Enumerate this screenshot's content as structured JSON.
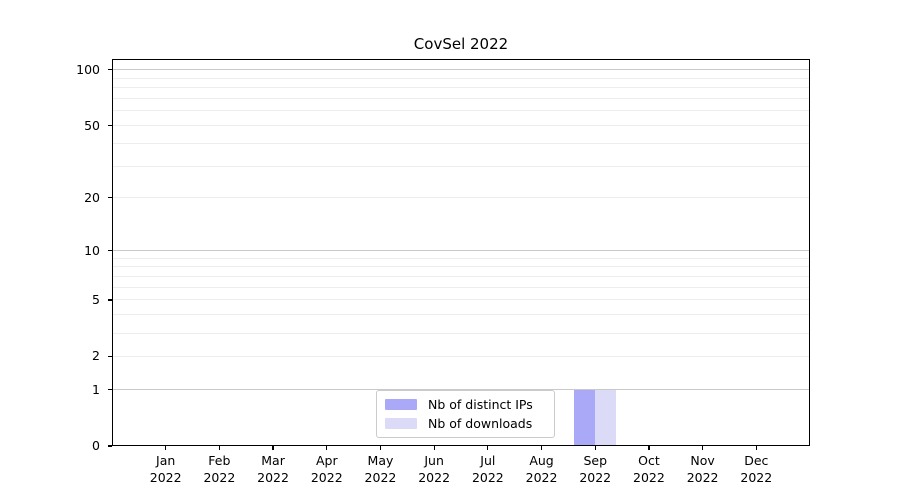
{
  "chart_data": {
    "type": "bar",
    "title": "CovSel 2022",
    "x_months": [
      "Jan",
      "Feb",
      "Mar",
      "Apr",
      "May",
      "Jun",
      "Jul",
      "Aug",
      "Sep",
      "Oct",
      "Nov",
      "Dec"
    ],
    "x_year": "2022",
    "series": [
      {
        "name": "Nb of distinct IPs",
        "color": "#a9a9f8",
        "values": [
          0,
          0,
          0,
          0,
          0,
          0,
          0,
          0,
          1,
          0,
          0,
          0
        ]
      },
      {
        "name": "Nb of downloads",
        "color": "#dbdbf8",
        "values": [
          0,
          0,
          0,
          0,
          0,
          0,
          0,
          0,
          1,
          0,
          0,
          0
        ]
      }
    ],
    "y_scale": "log1p",
    "ylim": [
      0,
      115
    ],
    "y_ticks": [
      0,
      1,
      2,
      5,
      10,
      20,
      50,
      100
    ],
    "y_major_gridlines": [
      1,
      10,
      100
    ],
    "y_minor_gridlines": [
      2,
      3,
      4,
      5,
      6,
      7,
      8,
      9,
      20,
      30,
      40,
      50,
      60,
      70,
      80,
      90
    ],
    "grid": true,
    "legend_position": "lower center"
  },
  "colors": {
    "series_1": "#a9a9f8",
    "series_2": "#dbdbf8",
    "grid_major": "#c9c9c9",
    "grid_minor": "#ededed",
    "axis": "#000000",
    "background": "#ffffff"
  }
}
